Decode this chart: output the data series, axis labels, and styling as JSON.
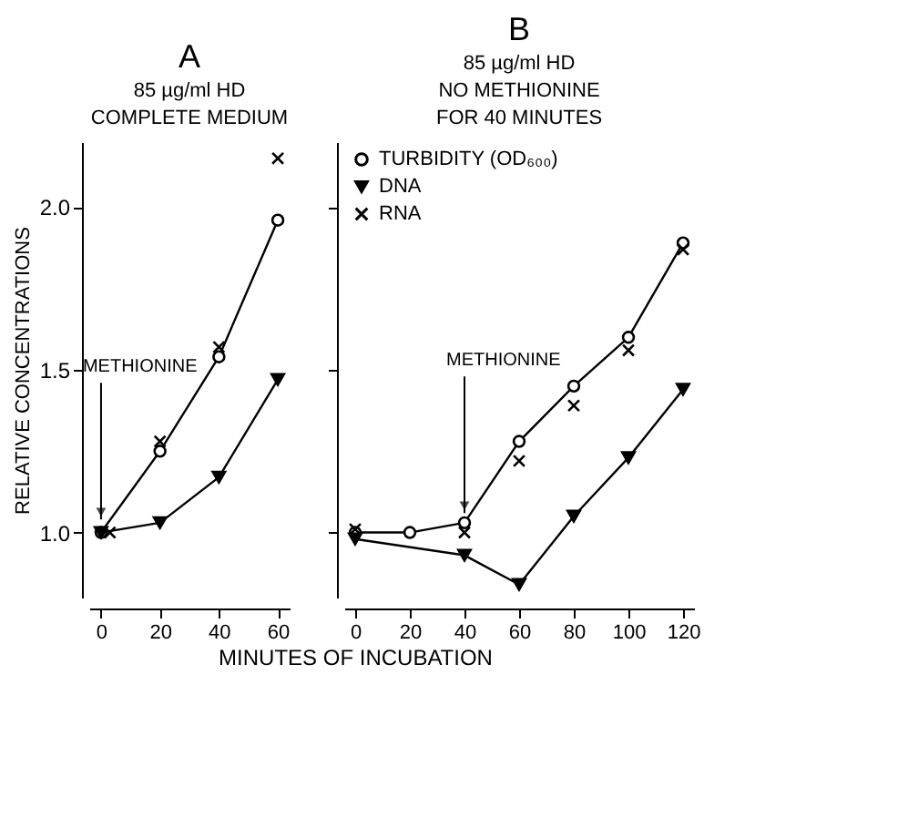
{
  "chart_data": [
    {
      "type": "line",
      "title": "A",
      "subtitle": "85 µg/ml HD\nCOMPLETE MEDIUM",
      "ylabel": "RELATIVE CONCENTRATIONS",
      "xlabel": "MINUTES OF INCUBATION",
      "xlim": [
        -4,
        64
      ],
      "xticks": [
        0,
        20,
        40,
        60
      ],
      "ylim": [
        0.8,
        2.2
      ],
      "yticks": [
        {
          "value": 1,
          "label": "1.0"
        },
        1.5,
        {
          "value": 2,
          "label": "2.0"
        }
      ],
      "series": [
        {
          "type": "line",
          "marker": "circle",
          "color": "#000000",
          "x": [
            0,
            20,
            40,
            60
          ],
          "values": [
            1.0,
            1.25,
            1.54,
            1.96
          ]
        },
        {
          "type": "line",
          "marker": "triangle",
          "color": "#000000",
          "x": [
            0,
            20,
            40,
            60
          ],
          "values": [
            1.0,
            1.03,
            1.17,
            1.47
          ]
        },
        {
          "type": "scatter",
          "marker": "cross",
          "color": "#000000",
          "x": [
            3,
            20,
            40,
            60
          ],
          "values": [
            1.0,
            1.28,
            1.57,
            2.15
          ]
        }
      ],
      "annotations": [
        {
          "text": "METHIONINE",
          "x": 0,
          "y": 1.04
        }
      ],
      "grid": false,
      "legend": false,
      "line_style": "solid"
    },
    {
      "type": "line",
      "title": "B",
      "subtitle": "85 µg/ml HD\nNO METHIONINE\nFOR 40 MINUTES",
      "xlim": [
        -4,
        124
      ],
      "xticks": [
        0,
        20,
        40,
        60,
        80,
        100,
        120
      ],
      "ylim": [
        0.8,
        2.2
      ],
      "yticks": [
        {
          "value": 1,
          "label": null
        },
        {
          "value": 1.5,
          "label": null
        },
        {
          "value": 2,
          "label": null
        }
      ],
      "tick_labels": "x",
      "series": [
        {
          "type": "line",
          "name": "TURBIDITY (OD₆₀₀)",
          "marker": "circle",
          "color": "#000000",
          "x": [
            0,
            20,
            40,
            60,
            80,
            100,
            120
          ],
          "values": [
            1.0,
            1.0,
            1.03,
            1.28,
            1.45,
            1.6,
            1.89
          ]
        },
        {
          "type": "line",
          "name": "DNA",
          "marker": "triangle",
          "color": "#000000",
          "x": [
            0,
            40,
            60,
            80,
            100,
            120
          ],
          "values": [
            0.98,
            0.93,
            0.84,
            1.05,
            1.23,
            1.44
          ]
        },
        {
          "type": "scatter",
          "name": "RNA",
          "marker": "cross",
          "color": "#000000",
          "x": [
            0,
            40,
            60,
            80,
            100,
            120
          ],
          "values": [
            1.01,
            1.0,
            1.22,
            1.39,
            1.56,
            1.87
          ]
        }
      ],
      "annotations": [
        {
          "text": "METHIONINE",
          "x": 40,
          "y": 1.06
        }
      ],
      "grid": false,
      "legend": "top left",
      "line_style": "solid"
    }
  ]
}
